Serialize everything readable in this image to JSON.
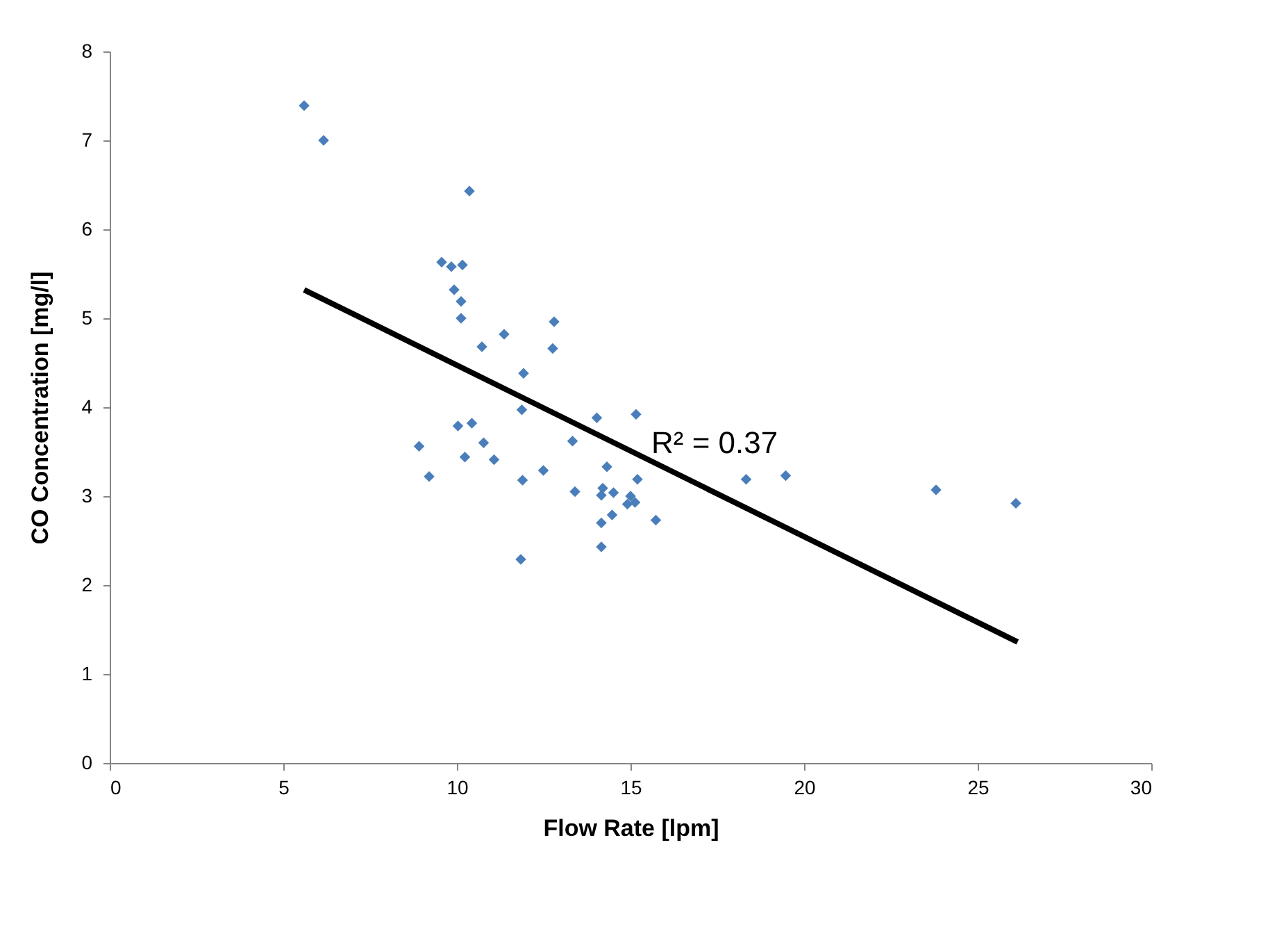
{
  "chart_data": {
    "type": "scatter",
    "xlabel": "Flow Rate [lpm]",
    "ylabel": "CO Concentration [mg/l]",
    "xlim": [
      0,
      30
    ],
    "ylim": [
      0,
      8
    ],
    "xticks": [
      0,
      5,
      10,
      15,
      20,
      25,
      30
    ],
    "yticks": [
      0,
      1,
      2,
      3,
      4,
      5,
      6,
      7,
      8
    ],
    "grid": false,
    "marker": "diamond",
    "series": [
      {
        "color": "#4a7ebb",
        "x": [
          5.6,
          6.16,
          10.36,
          9.56,
          9.84,
          10.16,
          9.92,
          10.12,
          10.12,
          10.72,
          11.36,
          12.8,
          12.76,
          11.92,
          11.87,
          14.03,
          15.16,
          10.03,
          10.43,
          8.91,
          10.77,
          13.33,
          10.23,
          11.07,
          9.2,
          11.89,
          12.49,
          14.32,
          15.2,
          13.4,
          14.2,
          14.16,
          14.51,
          15.0,
          14.91,
          15.13,
          14.47,
          14.16,
          15.73,
          14.16,
          11.84,
          18.33,
          19.47,
          23.8,
          26.1
        ],
        "values": [
          7.39,
          7.0,
          6.43,
          5.63,
          5.58,
          5.6,
          5.32,
          5.19,
          5.0,
          4.68,
          4.82,
          4.96,
          4.66,
          4.38,
          3.97,
          3.88,
          3.92,
          3.79,
          3.82,
          3.56,
          3.6,
          3.62,
          3.44,
          3.41,
          3.22,
          3.18,
          3.29,
          3.33,
          3.19,
          3.05,
          3.09,
          3.01,
          3.04,
          3.0,
          2.91,
          2.93,
          2.79,
          2.7,
          2.73,
          2.43,
          2.29,
          3.19,
          3.23,
          3.07,
          2.92
        ]
      },
      {
        "type": "line",
        "color": "#000000",
        "marker": "none",
        "x": [
          5.6,
          26.15
        ],
        "values": [
          5.32,
          1.36
        ]
      }
    ],
    "annotations": [
      "R² = 0.37"
    ]
  }
}
